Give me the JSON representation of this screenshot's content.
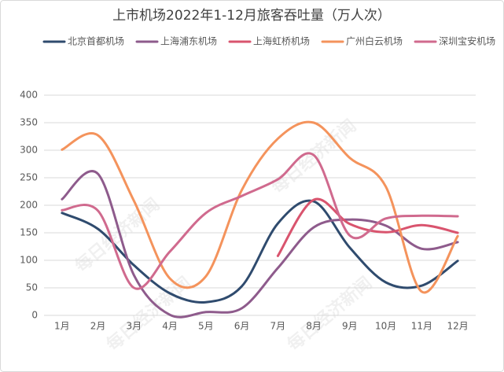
{
  "chart_data": {
    "type": "line",
    "title": "上市机场2022年1-12月旅客吞吐量（万人次）",
    "watermark": "每日经济新闻",
    "categories": [
      "1月",
      "2月",
      "3月",
      "4月",
      "5月",
      "6月",
      "7月",
      "8月",
      "9月",
      "10月",
      "11月",
      "12月"
    ],
    "series": [
      {
        "name": "北京首都机场",
        "color": "#2f4b6e",
        "values": [
          186,
          157,
          91,
          40,
          24,
          53,
          167,
          207,
          123,
          60,
          54,
          99
        ]
      },
      {
        "name": "上海浦东机场",
        "color": "#8e5b8c",
        "values": [
          211,
          257,
          73,
          1,
          6,
          13,
          86,
          160,
          174,
          163,
          121,
          133
        ]
      },
      {
        "name": "上海虹桥机场",
        "color": "#d9546e",
        "values": [
          null,
          null,
          null,
          null,
          null,
          null,
          108,
          210,
          166,
          151,
          164,
          150
        ]
      },
      {
        "name": "广州白云机场",
        "color": "#f4935c",
        "values": [
          301,
          327,
          208,
          67,
          71,
          228,
          321,
          350,
          286,
          234,
          43,
          144
        ]
      },
      {
        "name": "深圳宝安机场",
        "color": "#d06a8e",
        "values": [
          191,
          190,
          50,
          116,
          186,
          217,
          247,
          291,
          145,
          176,
          181,
          180
        ]
      }
    ],
    "ylim": [
      0,
      400
    ],
    "yticks": [
      0,
      50,
      100,
      150,
      200,
      250,
      300,
      350,
      400
    ],
    "grid": true,
    "legend": "top",
    "smooth": true
  }
}
